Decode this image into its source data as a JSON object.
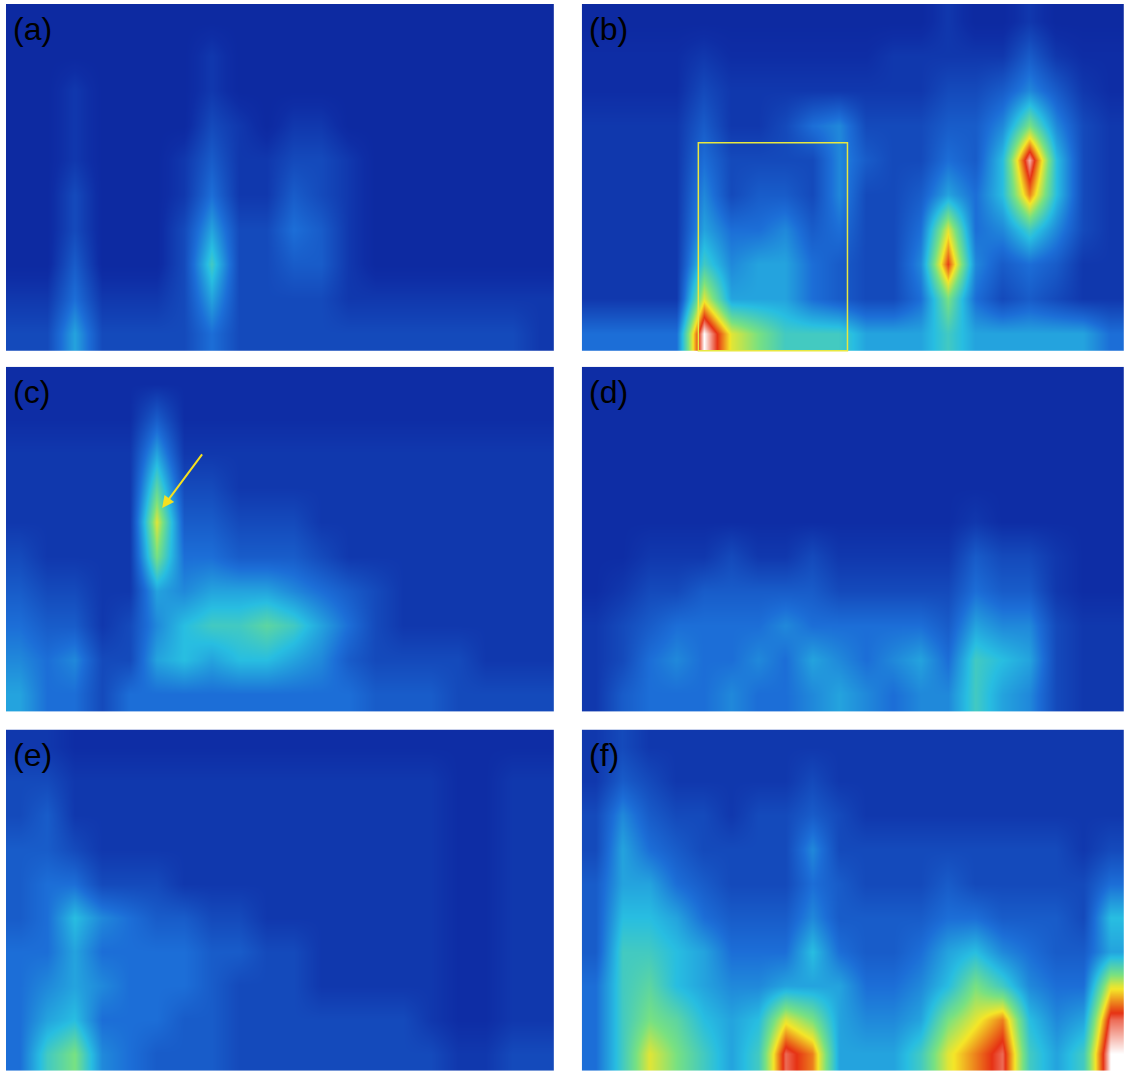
{
  "chart_data": [
    {
      "type": "heatmap",
      "title": "(a)",
      "zlim": [
        0,
        10
      ],
      "tick_labels": false,
      "z": [
        [
          2,
          2,
          4,
          2,
          2,
          2,
          2,
          3,
          2,
          2,
          2,
          2,
          2,
          2,
          2,
          2,
          2,
          2,
          2,
          1.5
        ],
        [
          1.5,
          1.5,
          3,
          1.5,
          1.5,
          1.5,
          2,
          4,
          2,
          2,
          2,
          2,
          1.5,
          1.5,
          1.5,
          1.5,
          1.5,
          1.5,
          1.5,
          1.5
        ],
        [
          1,
          1,
          2.5,
          1,
          1,
          1,
          2,
          5,
          2,
          2,
          2.5,
          2.5,
          1.5,
          1,
          1,
          1,
          1,
          1,
          1,
          1
        ],
        [
          1,
          1,
          2,
          1,
          1,
          1,
          2,
          4,
          2,
          2,
          3,
          2.5,
          1.5,
          1,
          1,
          1,
          1,
          1,
          1,
          1
        ],
        [
          1,
          1,
          2,
          1,
          1,
          1,
          1.5,
          3,
          1.5,
          1.5,
          2.5,
          2,
          1.5,
          1,
          1,
          1,
          1,
          1,
          1,
          1
        ],
        [
          1,
          1,
          1.5,
          1,
          1,
          1,
          1.5,
          2.5,
          1.5,
          1.5,
          2,
          2,
          1.5,
          1,
          1,
          1,
          1,
          1,
          1,
          1
        ],
        [
          1,
          1,
          1.5,
          1,
          1,
          1,
          1,
          2,
          1.5,
          1,
          1.5,
          1.5,
          1,
          1,
          1,
          1,
          1,
          1,
          1,
          1
        ],
        [
          1,
          1,
          1.5,
          1,
          1,
          1,
          1,
          1.5,
          1,
          1,
          1,
          1,
          1,
          1,
          1,
          1,
          1,
          1,
          1,
          1
        ],
        [
          1,
          1,
          1,
          1,
          1,
          1,
          1,
          1.5,
          1,
          1,
          1,
          1,
          1,
          1,
          1,
          1,
          1,
          1,
          1,
          1
        ],
        [
          1,
          1,
          1,
          1,
          1,
          1,
          1,
          1,
          1,
          1,
          1,
          1,
          1,
          1,
          1,
          1,
          1,
          1,
          1,
          1
        ]
      ]
    },
    {
      "type": "heatmap",
      "title": "(b)",
      "zlim": [
        0,
        10
      ],
      "tick_labels": false,
      "z": [
        [
          3,
          3,
          3,
          3,
          10,
          7,
          6,
          5,
          5,
          5,
          4,
          4,
          4,
          5,
          4,
          4,
          4,
          4,
          4,
          3
        ],
        [
          1.5,
          1.5,
          1.5,
          1.5,
          7,
          4,
          4,
          4,
          3,
          2.5,
          2,
          2,
          3,
          6,
          3,
          2,
          2.5,
          2,
          1.5,
          1.5
        ],
        [
          1.5,
          1.5,
          1.5,
          1.5,
          5,
          3.5,
          4,
          4,
          3,
          2.5,
          2,
          2,
          3.5,
          8.5,
          3.5,
          2.5,
          3,
          2.5,
          1.5,
          1.5
        ],
        [
          1.5,
          1.5,
          1.5,
          1.5,
          4,
          3,
          3,
          3.5,
          2.5,
          3,
          2,
          2,
          3,
          7,
          3,
          3.5,
          5,
          3.5,
          2,
          1.5
        ],
        [
          1.5,
          1.5,
          1.5,
          1.5,
          3.5,
          2,
          2.5,
          2.5,
          2,
          3.5,
          2,
          2,
          2.5,
          4,
          3,
          4.5,
          8,
          4.5,
          2,
          1.5
        ],
        [
          1.5,
          1.5,
          1.5,
          1.5,
          3,
          2,
          2,
          2,
          2,
          3.5,
          2.5,
          2,
          2,
          3,
          2.5,
          4.5,
          9.5,
          4.5,
          2,
          1.5
        ],
        [
          1.5,
          1.5,
          1.5,
          1.5,
          2.5,
          1.5,
          1.5,
          2,
          3,
          3.5,
          2,
          2,
          2,
          2.5,
          2.5,
          3.5,
          6,
          3.5,
          2,
          1.5
        ],
        [
          1.2,
          1.2,
          1.2,
          1.2,
          2,
          1.5,
          1.5,
          1.5,
          1.5,
          1.5,
          1.5,
          1.5,
          1.5,
          2,
          2,
          2.5,
          3.5,
          2.5,
          1.5,
          1.2
        ],
        [
          1.2,
          1.2,
          1.2,
          1.2,
          1.5,
          1.2,
          1.2,
          1.2,
          1.2,
          1.2,
          1.2,
          1.5,
          1.5,
          1.5,
          1.5,
          1.5,
          2.5,
          1.5,
          1.2,
          1.2
        ],
        [
          1,
          1,
          1,
          1,
          1,
          1,
          1,
          1,
          1,
          1,
          1,
          1,
          1,
          1.5,
          1,
          1,
          1.5,
          1,
          1,
          1
        ]
      ]
    },
    {
      "type": "heatmap",
      "title": "(c)",
      "zlim": [
        0,
        10
      ],
      "tick_labels": false,
      "z": [
        [
          4,
          3,
          3,
          2,
          3,
          3,
          3,
          3,
          3,
          3,
          3,
          3,
          3,
          2.5,
          2.5,
          2.5,
          2,
          2,
          2,
          2
        ],
        [
          3.5,
          3,
          3.5,
          2,
          2,
          4,
          4.5,
          4,
          4.5,
          4.5,
          4,
          3.5,
          2.5,
          2,
          2,
          2,
          2,
          1.5,
          1.5,
          1.5
        ],
        [
          3,
          2.5,
          2.5,
          1.5,
          2,
          3.5,
          4.5,
          5,
          5,
          5.5,
          5,
          4,
          3,
          2,
          1.5,
          1.5,
          1.5,
          1.5,
          1.5,
          1.5
        ],
        [
          2.5,
          2,
          2,
          1.5,
          1.5,
          4,
          3.5,
          4,
          4,
          4,
          3.5,
          3,
          2.5,
          2,
          1.5,
          1.5,
          1.5,
          1.5,
          1.5,
          1.5
        ],
        [
          2,
          1.5,
          1.5,
          1.5,
          1.5,
          6,
          3,
          3,
          2.5,
          2.5,
          2.5,
          2,
          1.5,
          1.5,
          1.5,
          1.5,
          1.5,
          1.5,
          1.5,
          1.5
        ],
        [
          1.5,
          1.5,
          1.5,
          1.5,
          1.5,
          7,
          2.5,
          2.5,
          2,
          2,
          2,
          1.5,
          1.5,
          1.5,
          1.5,
          1.5,
          1.5,
          1.5,
          1.5,
          1.5
        ],
        [
          1.5,
          1.5,
          1.5,
          1.5,
          1.5,
          5.5,
          2,
          2,
          1.5,
          1.5,
          1.5,
          1.5,
          1.5,
          1.5,
          1.5,
          1.5,
          1.5,
          1.5,
          1.5,
          1.5
        ],
        [
          1.5,
          1.5,
          1.5,
          1.5,
          1.5,
          4,
          1.5,
          1.5,
          1.5,
          1.5,
          1.5,
          1.5,
          1.5,
          1.5,
          1.5,
          1.5,
          1.5,
          1.5,
          1.5,
          1.5
        ],
        [
          1.2,
          1.2,
          1.2,
          1.2,
          1.2,
          2.5,
          1.2,
          1.2,
          1.2,
          1.2,
          1.2,
          1.2,
          1.2,
          1.2,
          1.2,
          1.2,
          1.2,
          1.2,
          1.2,
          1.2
        ],
        [
          1.2,
          1.2,
          1.2,
          1.2,
          1.2,
          1.2,
          1.2,
          1.2,
          1.2,
          1.2,
          1.2,
          1.2,
          1.2,
          1.2,
          1.2,
          1.2,
          1.2,
          1.2,
          1.2,
          1.2
        ]
      ]
    },
    {
      "type": "heatmap",
      "title": "(d)",
      "zlim": [
        0,
        10
      ],
      "tick_labels": false,
      "z": [
        [
          1.5,
          2.5,
          3,
          3,
          3,
          3.5,
          3,
          3,
          3.5,
          4,
          3.5,
          3,
          3.5,
          3.5,
          5,
          4,
          3.5,
          2,
          1.5,
          1.5
        ],
        [
          1.5,
          2,
          3,
          3.5,
          3,
          3,
          3.5,
          3,
          4,
          3.5,
          3,
          3.5,
          4,
          3,
          5,
          4.5,
          4,
          2,
          1.5,
          1.5
        ],
        [
          1.5,
          2,
          2.5,
          3,
          3,
          3,
          3,
          3.5,
          3,
          3,
          3,
          3,
          3,
          2.5,
          4,
          3.5,
          3.5,
          2,
          1.5,
          1.5
        ],
        [
          1.2,
          1.5,
          2,
          2,
          2.5,
          2.5,
          2.5,
          2.5,
          2.5,
          2,
          2,
          2,
          2,
          2,
          3,
          2.5,
          2.5,
          1.5,
          1.2,
          1.2
        ],
        [
          1.2,
          1.2,
          1.5,
          1.5,
          1.5,
          2,
          1.5,
          1.5,
          2,
          1.5,
          1.5,
          1.5,
          1.5,
          1.5,
          2.5,
          2,
          2,
          1.5,
          1.2,
          1.2
        ],
        [
          1.2,
          1.2,
          1.2,
          1.2,
          1.2,
          1.2,
          1.2,
          1.2,
          1.2,
          1.2,
          1.2,
          1.2,
          1.2,
          1.2,
          1.5,
          1.2,
          1.2,
          1.2,
          1.2,
          1.2
        ],
        [
          1.2,
          1.2,
          1.2,
          1.2,
          1.2,
          1.2,
          1.2,
          1.2,
          1.2,
          1.2,
          1.2,
          1.2,
          1.2,
          1.2,
          1.2,
          1.2,
          1.2,
          1.2,
          1.2,
          1.2
        ],
        [
          1.2,
          1.2,
          1.2,
          1.2,
          1.2,
          1.2,
          1.2,
          1.2,
          1.2,
          1.2,
          1.2,
          1.2,
          1.2,
          1.2,
          1.2,
          1.2,
          1.2,
          1.2,
          1.2,
          1.2
        ],
        [
          1.2,
          1.2,
          1.2,
          1.2,
          1.2,
          1.2,
          1.2,
          1.2,
          1.2,
          1.2,
          1.2,
          1.2,
          1.2,
          1.2,
          1.2,
          1.2,
          1.2,
          1.2,
          1.2,
          1.2
        ],
        [
          1.2,
          1.2,
          1.2,
          1.2,
          1.2,
          1.2,
          1.2,
          1.2,
          1.2,
          1.2,
          1.2,
          1.2,
          1.2,
          1.2,
          1.2,
          1.2,
          1.2,
          1.2,
          1.2,
          1.2
        ]
      ]
    },
    {
      "type": "heatmap",
      "title": "(e)",
      "zlim": [
        0,
        10
      ],
      "tick_labels": false,
      "z": [
        [
          3,
          5,
          6,
          3.5,
          3,
          2.5,
          2.5,
          2.5,
          2,
          2,
          2,
          2,
          2,
          2,
          2,
          2,
          1.5,
          1.5,
          2,
          2
        ],
        [
          3,
          4,
          4.5,
          3,
          3,
          3,
          2.5,
          2.5,
          2,
          2,
          2,
          2,
          2,
          2,
          2,
          1.5,
          1.2,
          1.2,
          1.5,
          1.5
        ],
        [
          3,
          3.5,
          4,
          3.5,
          3,
          3,
          3,
          2.5,
          2,
          2,
          2,
          1.5,
          1.5,
          1.5,
          1.5,
          1.5,
          1.2,
          1.2,
          1.5,
          1.5
        ],
        [
          3,
          3,
          4,
          3,
          3,
          3,
          3,
          2.5,
          2.5,
          2,
          2,
          1.5,
          1.5,
          1.5,
          1.5,
          1.5,
          1.2,
          1.2,
          1.5,
          1.5
        ],
        [
          2.5,
          3,
          4.5,
          3.5,
          3,
          2.5,
          2.5,
          2,
          2,
          1.5,
          1.5,
          1.5,
          1.5,
          1.5,
          1.5,
          1.5,
          1.2,
          1.2,
          1.5,
          1.5
        ],
        [
          2.5,
          3,
          3,
          2,
          2,
          2,
          1.5,
          1.5,
          1.5,
          1.5,
          1.5,
          1.5,
          1.5,
          1.5,
          1.5,
          1.5,
          1.2,
          1.2,
          1.5,
          1.5
        ],
        [
          2.5,
          2.5,
          2,
          1.5,
          1.5,
          1.5,
          1.5,
          1.5,
          1.5,
          1.5,
          1.5,
          1.5,
          1.5,
          1.5,
          1.5,
          1.5,
          1.2,
          1.2,
          1.5,
          1.5
        ],
        [
          2,
          2.5,
          1.5,
          1.5,
          1.5,
          1.5,
          1.5,
          1.5,
          1.5,
          1.5,
          1.5,
          1.5,
          1.5,
          1.5,
          1.5,
          1.5,
          1.2,
          1.2,
          1.5,
          1.5
        ],
        [
          2,
          2,
          1.5,
          1.5,
          1.5,
          1.5,
          1.5,
          1.5,
          1.5,
          1.5,
          1.5,
          1.5,
          1.5,
          1.5,
          1.5,
          1.5,
          1.2,
          1.2,
          1.5,
          1.5
        ],
        [
          1.5,
          1.5,
          1.2,
          1.2,
          1.2,
          1.2,
          1.2,
          1.2,
          1.2,
          1.2,
          1.2,
          1.2,
          1.2,
          1.2,
          1.2,
          1.2,
          1.2,
          1.2,
          1.2,
          1.2
        ]
      ]
    },
    {
      "type": "heatmap",
      "title": "(f)",
      "zlim": [
        0,
        10
      ],
      "tick_labels": false,
      "z": [
        [
          3,
          5,
          7,
          6,
          5,
          4,
          5,
          9,
          8,
          4,
          4,
          4,
          5,
          7,
          8,
          9,
          5,
          4,
          5,
          10
        ],
        [
          3,
          5,
          6,
          5.5,
          4.5,
          4,
          4.5,
          7,
          6,
          4,
          3.5,
          3.5,
          4,
          6,
          7,
          8,
          4.5,
          3.5,
          4,
          9
        ],
        [
          3,
          5,
          5.5,
          4.5,
          4,
          3.5,
          3.5,
          4,
          4,
          4,
          3,
          3,
          3.5,
          4.5,
          6,
          5,
          3.5,
          3,
          3,
          7
        ],
        [
          2.5,
          5,
          5,
          4.5,
          4,
          3,
          3,
          3,
          4.5,
          3,
          2.5,
          2.5,
          3,
          4,
          4.5,
          3.5,
          3,
          2.5,
          2.5,
          4
        ],
        [
          2.5,
          4.5,
          4.5,
          4,
          3,
          2.5,
          2.5,
          2.5,
          3.5,
          2.5,
          2.5,
          2.5,
          2.5,
          3,
          3,
          2.5,
          2.5,
          2.5,
          2,
          4.5
        ],
        [
          2.5,
          4,
          4,
          3,
          2.5,
          2,
          2,
          2,
          3,
          2.5,
          2,
          2,
          2,
          2.5,
          2,
          2,
          2,
          2,
          2,
          3
        ],
        [
          2,
          4,
          3,
          2.5,
          2,
          2,
          2,
          2,
          3.5,
          2,
          2,
          2,
          2,
          2,
          2,
          2,
          2,
          2,
          1.5,
          2
        ],
        [
          2,
          3.5,
          2.5,
          2,
          2,
          1.5,
          2,
          2,
          2.5,
          2,
          1.5,
          1.5,
          1.5,
          1.5,
          1.5,
          1.5,
          1.5,
          1.5,
          1.5,
          1.5
        ],
        [
          1.5,
          2.5,
          2,
          1.5,
          1.5,
          1.5,
          1.5,
          1.5,
          2,
          1.5,
          1.5,
          1.5,
          1.5,
          1.5,
          1.5,
          1.5,
          1.5,
          1.5,
          1.5,
          1.5
        ],
        [
          1.5,
          2,
          1.5,
          1.5,
          1.5,
          1.5,
          1.5,
          1.5,
          1.5,
          1.5,
          1.5,
          1.5,
          1.5,
          1.5,
          1.5,
          1.5,
          1.5,
          1.5,
          1.5,
          1.5
        ]
      ]
    }
  ]
}
